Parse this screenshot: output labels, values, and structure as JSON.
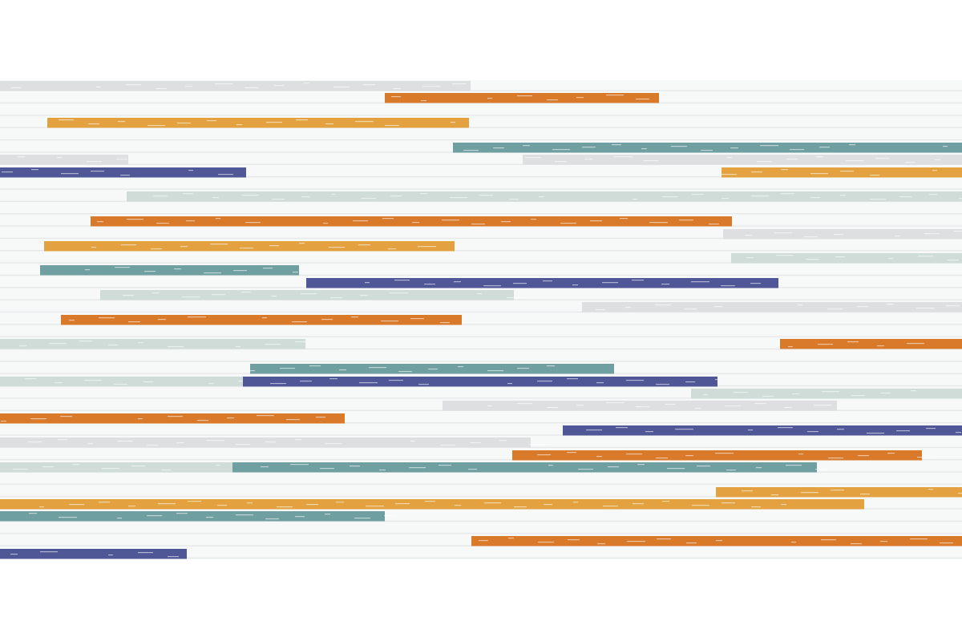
{
  "palette": {
    "background": "#ffffff",
    "panel": "#f7f8f8",
    "groove": "#e6e9ea",
    "orange": "#d9792a",
    "yellow": "#e3a23f",
    "teal": "#6f9fa0",
    "navy": "#4f5796",
    "light_gray": "#dedfe0",
    "light_green": "#cfdcd8"
  }
}
